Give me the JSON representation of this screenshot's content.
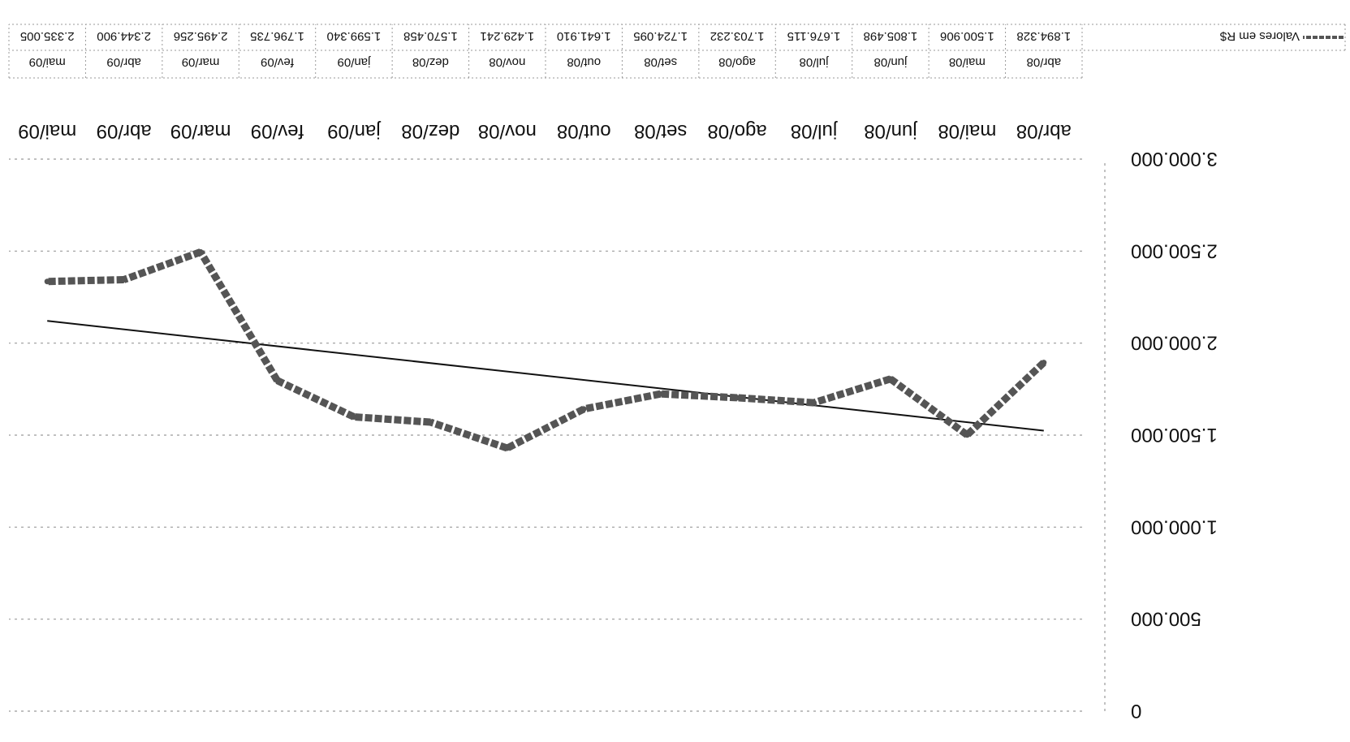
{
  "chart_data": {
    "type": "line",
    "categories": [
      "abr/08",
      "mai/08",
      "jun/08",
      "jul/08",
      "ago/08",
      "set/08",
      "out/08",
      "nov/08",
      "dez/08",
      "jan/09",
      "fev/09",
      "mar/09",
      "abr/09",
      "mai/09"
    ],
    "series": [
      {
        "name": "Valores em R$",
        "values": [
          1894328,
          1500906,
          1805498,
          1676115,
          1703232,
          1724095,
          1641910,
          1429241,
          1570458,
          1599340,
          1796735,
          2495256,
          2344900,
          2335005
        ],
        "value_labels": [
          "1.894.328",
          "1.500.906",
          "1.805.498",
          "1.676.115",
          "1.703.232",
          "1.724.095",
          "1.641.910",
          "1.429.241",
          "1.570.458",
          "1.599.340",
          "1.796.735",
          "2.495.256",
          "2.344.900",
          "2.335.005"
        ],
        "color": "#555555",
        "style": "thick-dashed"
      }
    ],
    "trendline": {
      "type": "linear",
      "color": "#111111"
    },
    "y_ticks": [
      0,
      500000,
      1000000,
      1500000,
      2000000,
      2500000,
      3000000
    ],
    "y_tick_labels": [
      "0",
      "500.000",
      "1.000.000",
      "1.500.000",
      "2.000.000",
      "2.500.000",
      "3.000.000"
    ],
    "ylim": [
      0,
      3000000
    ],
    "y_axis_inverted": true,
    "image_rotated_180": true,
    "grid": true,
    "data_table": true
  }
}
